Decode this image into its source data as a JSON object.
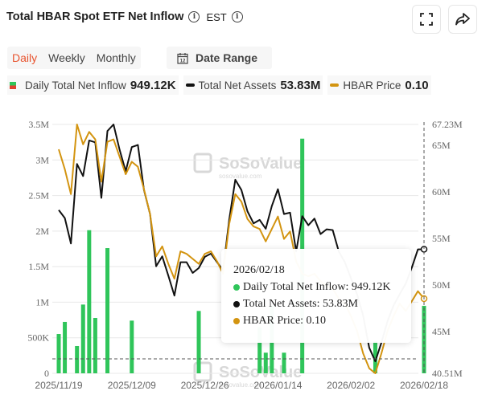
{
  "header": {
    "title": "Total HBAR Spot ETF Net Inflow",
    "timezone": "EST",
    "info_icon": "info-icon",
    "fullscreen_icon": "fullscreen-icon",
    "share_icon": "share-icon"
  },
  "tabs": [
    {
      "label": "Daily",
      "active": true
    },
    {
      "label": "Weekly",
      "active": false
    },
    {
      "label": "Monthly",
      "active": false
    }
  ],
  "date_range": {
    "label": "Date Range",
    "icon": "calendar-icon",
    "icon_text": "12"
  },
  "legend": [
    {
      "label": "Daily Total Net Inflow",
      "value": "949.12K",
      "color": "#2fc55a"
    },
    {
      "label": "Total Net Assets",
      "value": "53.83M",
      "color": "#111111"
    },
    {
      "label": "HBAR Price",
      "value": "0.10",
      "color": "#d39410"
    }
  ],
  "tooltip": {
    "date": "2026/02/18",
    "rows": [
      {
        "text": "Daily Total Net Inflow: 949.12K",
        "color": "#2fc55a"
      },
      {
        "text": "Total Net Assets: 53.83M",
        "color": "#111111"
      },
      {
        "text": "HBAR Price: 0.10",
        "color": "#d39410"
      }
    ]
  },
  "watermark": {
    "brand": "SoSoValue",
    "url": "sosovalue.com"
  },
  "colors": {
    "inflow": "#2fc55a",
    "assets": "#111111",
    "price": "#d39410",
    "grid": "#e8e8e8",
    "axis_text": "#666666"
  },
  "chart_data": {
    "type": "bar+line",
    "x": [
      "2025/11/19",
      "2025/11/20",
      "2025/11/21",
      "2025/11/24",
      "2025/11/25",
      "2025/11/26",
      "2025/12/01",
      "2025/12/02",
      "2025/12/03",
      "2025/12/04",
      "2025/12/05",
      "2025/12/08",
      "2025/12/09",
      "2025/12/10",
      "2025/12/11",
      "2025/12/12",
      "2025/12/15",
      "2025/12/16",
      "2025/12/17",
      "2025/12/18",
      "2025/12/19",
      "2025/12/22",
      "2025/12/23",
      "2025/12/24",
      "2025/12/26",
      "2025/12/29",
      "2025/12/30",
      "2025/12/31",
      "2026/01/02",
      "2026/01/05",
      "2026/01/06",
      "2026/01/07",
      "2026/01/08",
      "2026/01/09",
      "2026/01/12",
      "2026/01/13",
      "2026/01/14",
      "2026/01/15",
      "2026/01/16",
      "2026/01/20",
      "2026/01/21",
      "2026/01/22",
      "2026/01/23",
      "2026/01/26",
      "2026/01/27",
      "2026/01/28",
      "2026/01/29",
      "2026/01/30",
      "2026/02/02",
      "2026/02/03",
      "2026/02/04",
      "2026/02/05",
      "2026/02/06",
      "2026/02/09",
      "2026/02/10",
      "2026/02/11",
      "2026/02/12",
      "2026/02/13",
      "2026/02/16",
      "2026/02/17",
      "2026/02/18"
    ],
    "x_ticks": [
      "2025/11/19",
      "2025/12/09",
      "2025/12/26",
      "2026/01/14",
      "2026/02/02",
      "2026/02/18"
    ],
    "left_axis": {
      "range": [
        0,
        3500000
      ],
      "ticks": [
        0,
        500000,
        1000000,
        1500000,
        2000000,
        2500000,
        3000000,
        3500000
      ],
      "tick_labels": [
        "0",
        "500K",
        "1M",
        "1.5M",
        "2M",
        "2.5M",
        "3M",
        "3.5M"
      ]
    },
    "right_axis": {
      "range": [
        40.51,
        67.23
      ],
      "ticks": [
        40.51,
        45,
        50,
        55,
        60,
        65,
        67.23
      ],
      "tick_labels": [
        "40.51M",
        "45M",
        "50M",
        "55M",
        "60M",
        "65M",
        "67.23M"
      ]
    },
    "price_axis": {
      "range": [
        0.07,
        0.17
      ],
      "visible": false
    },
    "grid": true,
    "series": [
      {
        "name": "Daily Total Net Inflow",
        "type": "bar",
        "axis": "left",
        "points": [
          [
            0,
            553000
          ],
          [
            1,
            723000
          ],
          [
            3,
            384000
          ],
          [
            4,
            967000
          ],
          [
            5,
            2013000
          ],
          [
            6,
            779000
          ],
          [
            8,
            1761000
          ],
          [
            12,
            741000
          ],
          [
            23,
            877000
          ],
          [
            33,
            650000
          ],
          [
            34,
            290000
          ],
          [
            35,
            950000
          ],
          [
            37,
            290000
          ],
          [
            40,
            3300000
          ],
          [
            52,
            450000
          ],
          [
            60,
            949120
          ]
        ]
      },
      {
        "name": "Total Net Assets",
        "type": "line",
        "axis": "right",
        "values": [
          58.04,
          57.18,
          54.45,
          62.98,
          61.69,
          65.51,
          65.31,
          59.34,
          66.52,
          67.23,
          64.51,
          62.21,
          64.8,
          65.03,
          60.2,
          57.61,
          52.01,
          53.07,
          51.0,
          48.85,
          52.44,
          52.44,
          51.29,
          51.81,
          53.02,
          53.36,
          52.44,
          51.58,
          57.0,
          61.29,
          60.2,
          57.9,
          56.61,
          56.98,
          56.03,
          58.47,
          60.28,
          57.61,
          57.76,
          53.59,
          57.38,
          56.41,
          57.12,
          55.46,
          55.97,
          55.89,
          53.59,
          52.44,
          50.72,
          49.0,
          46.7,
          43.25,
          41.8,
          43.8,
          46.1,
          47.8,
          49.0,
          50.14,
          51.87,
          53.82,
          53.83
        ]
      },
      {
        "name": "HBAR Price",
        "type": "line",
        "axis": "price",
        "values": [
          0.16,
          0.152,
          0.142,
          0.17,
          0.162,
          0.167,
          0.164,
          0.147,
          0.163,
          0.164,
          0.157,
          0.15,
          0.155,
          0.153,
          0.144,
          0.134,
          0.117,
          0.121,
          0.114,
          0.108,
          0.119,
          0.118,
          0.116,
          0.114,
          0.118,
          0.119,
          0.115,
          0.11,
          0.13,
          0.142,
          0.139,
          0.132,
          0.129,
          0.128,
          0.123,
          0.128,
          0.133,
          0.124,
          0.127,
          0.115,
          0.11,
          0.109,
          0.11,
          0.107,
          0.105,
          0.104,
          0.1,
          0.098,
          0.093,
          0.087,
          0.078,
          0.072,
          0.07,
          0.078,
          0.087,
          0.093,
          0.098,
          0.095,
          0.099,
          0.103,
          0.1
        ]
      }
    ]
  }
}
